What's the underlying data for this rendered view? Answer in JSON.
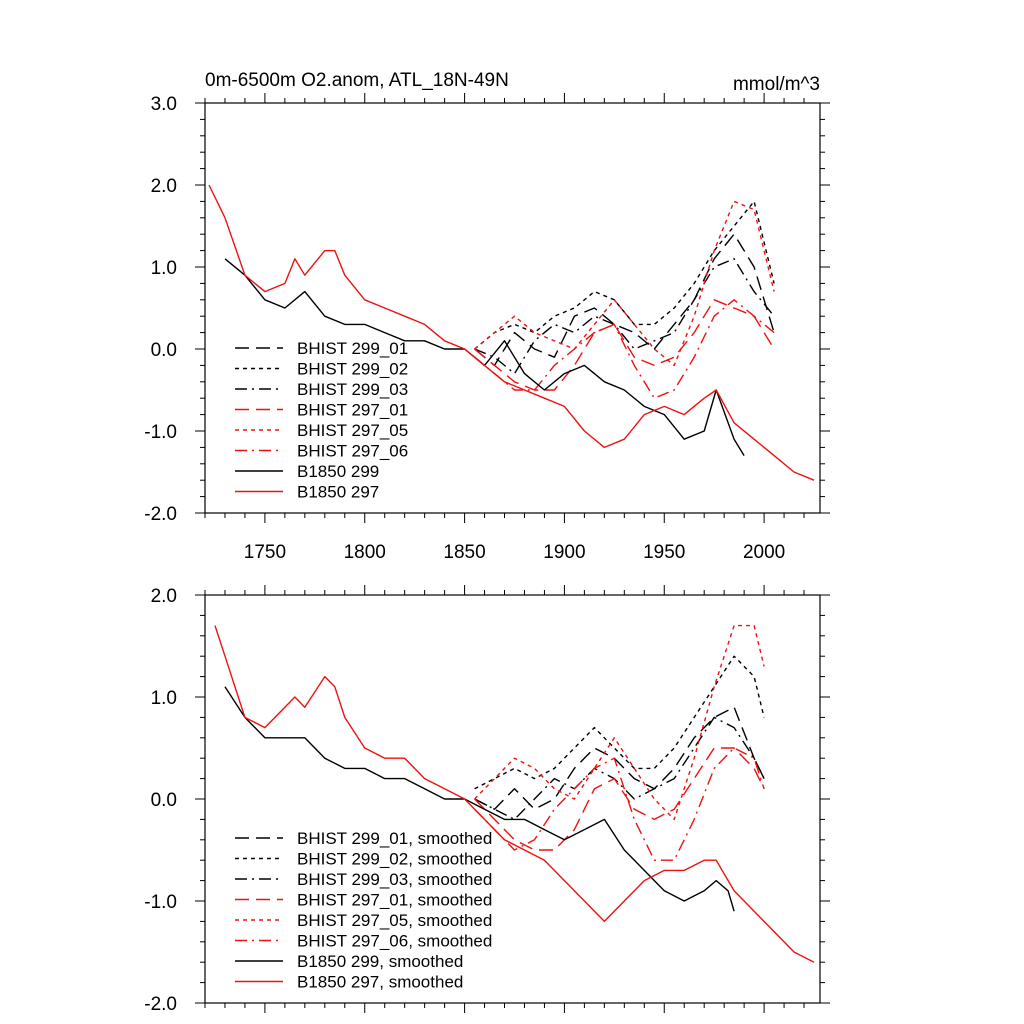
{
  "figure": {
    "title": "0m-6500m O2.anom, ATL_18N-49N",
    "units": "mmol/m^3"
  },
  "chart_data": [
    {
      "type": "line",
      "panel": "top",
      "xlim": [
        1720,
        2028
      ],
      "ylim": [
        -2.0,
        3.0
      ],
      "xticks": [
        1750,
        1800,
        1850,
        1900,
        1950,
        2000
      ],
      "xtick_labels": [
        "1750",
        "1800",
        "1850",
        "1900",
        "1950",
        "2000"
      ],
      "yticks": [
        -2,
        -1,
        0,
        1,
        2,
        3
      ],
      "ytick_labels": [
        "-2.0",
        "-1.0",
        "0.0",
        "1.0",
        "2.0",
        "3.0"
      ],
      "legend_position": "lower-left",
      "series": [
        {
          "name": "BHIST 299_01",
          "color": "#000000",
          "dash": "dash",
          "x": [
            1855,
            1865,
            1875,
            1885,
            1895,
            1905,
            1915,
            1925,
            1935,
            1945,
            1955,
            1965,
            1975,
            1985,
            1995,
            2005
          ],
          "y": [
            0.0,
            -0.2,
            0.2,
            0.0,
            -0.1,
            0.4,
            0.5,
            0.3,
            0.2,
            0.0,
            0.3,
            0.6,
            1.1,
            1.4,
            1.0,
            0.2
          ]
        },
        {
          "name": "BHIST 299_02",
          "color": "#000000",
          "dash": "dot",
          "x": [
            1855,
            1865,
            1875,
            1885,
            1895,
            1905,
            1915,
            1925,
            1935,
            1945,
            1955,
            1965,
            1975,
            1985,
            1995,
            2005
          ],
          "y": [
            0.0,
            0.2,
            0.3,
            0.2,
            0.4,
            0.5,
            0.7,
            0.6,
            0.3,
            0.3,
            0.5,
            0.8,
            1.2,
            1.5,
            1.8,
            0.8
          ]
        },
        {
          "name": "BHIST 299_03",
          "color": "#000000",
          "dash": "dashdot",
          "x": [
            1855,
            1865,
            1875,
            1885,
            1895,
            1905,
            1915,
            1925,
            1935,
            1945,
            1955,
            1965,
            1975,
            1985,
            1995,
            2005
          ],
          "y": [
            0.0,
            -0.1,
            -0.3,
            0.1,
            0.3,
            0.2,
            0.4,
            0.3,
            0.0,
            0.1,
            0.2,
            0.6,
            1.0,
            1.1,
            0.7,
            0.4
          ]
        },
        {
          "name": "BHIST 297_01",
          "color": "#ee1111",
          "dash": "dash",
          "x": [
            1855,
            1865,
            1875,
            1885,
            1895,
            1905,
            1915,
            1925,
            1935,
            1945,
            1955,
            1965,
            1975,
            1985,
            1995,
            2005
          ],
          "y": [
            0.0,
            -0.2,
            -0.4,
            -0.5,
            -0.5,
            -0.2,
            0.2,
            0.3,
            -0.1,
            -0.2,
            -0.1,
            0.2,
            0.6,
            0.5,
            0.4,
            0.0
          ]
        },
        {
          "name": "BHIST 297_05",
          "color": "#ee1111",
          "dash": "dot",
          "x": [
            1855,
            1865,
            1875,
            1885,
            1895,
            1905,
            1915,
            1925,
            1935,
            1945,
            1955,
            1965,
            1975,
            1985,
            1995,
            2005
          ],
          "y": [
            0.0,
            0.2,
            0.4,
            0.2,
            0.1,
            0.0,
            0.3,
            0.6,
            0.3,
            0.0,
            -0.2,
            0.4,
            1.2,
            1.8,
            1.7,
            0.7
          ]
        },
        {
          "name": "BHIST 297_06",
          "color": "#ee1111",
          "dash": "dashdot",
          "x": [
            1855,
            1865,
            1875,
            1885,
            1895,
            1905,
            1915,
            1925,
            1935,
            1945,
            1955,
            1965,
            1975,
            1985,
            1995,
            2005
          ],
          "y": [
            -0.1,
            -0.3,
            -0.5,
            -0.5,
            -0.2,
            0.0,
            0.2,
            0.3,
            -0.2,
            -0.6,
            -0.5,
            -0.1,
            0.4,
            0.6,
            0.4,
            0.2
          ]
        },
        {
          "name": "B1850 299",
          "color": "#000000",
          "dash": "solid",
          "x": [
            1730,
            1740,
            1750,
            1760,
            1770,
            1780,
            1790,
            1800,
            1810,
            1820,
            1830,
            1840,
            1850,
            1860,
            1870,
            1880,
            1890,
            1900,
            1910,
            1920,
            1930,
            1940,
            1950,
            1960,
            1970,
            1976,
            1985,
            1990
          ],
          "y": [
            1.1,
            0.9,
            0.6,
            0.5,
            0.7,
            0.4,
            0.3,
            0.3,
            0.2,
            0.1,
            0.1,
            0.0,
            0.0,
            -0.2,
            0.1,
            -0.3,
            -0.5,
            -0.3,
            -0.2,
            -0.4,
            -0.5,
            -0.7,
            -0.8,
            -1.1,
            -1.0,
            -0.5,
            -1.1,
            -1.3
          ]
        },
        {
          "name": "B1850 297",
          "color": "#ee1111",
          "dash": "solid",
          "x": [
            1722,
            1730,
            1740,
            1750,
            1760,
            1765,
            1770,
            1780,
            1785,
            1790,
            1800,
            1810,
            1820,
            1830,
            1840,
            1850,
            1860,
            1870,
            1880,
            1890,
            1900,
            1910,
            1920,
            1930,
            1940,
            1950,
            1960,
            1970,
            1976,
            1985,
            1995,
            2005,
            2015,
            2025
          ],
          "y": [
            2.0,
            1.6,
            0.9,
            0.7,
            0.8,
            1.1,
            0.9,
            1.2,
            1.2,
            0.9,
            0.6,
            0.5,
            0.4,
            0.3,
            0.1,
            0.0,
            -0.2,
            -0.4,
            -0.5,
            -0.6,
            -0.7,
            -1.0,
            -1.2,
            -1.1,
            -0.8,
            -0.7,
            -0.8,
            -0.6,
            -0.5,
            -0.9,
            -1.1,
            -1.3,
            -1.5,
            -1.6
          ]
        }
      ]
    },
    {
      "type": "line",
      "panel": "bottom",
      "xlim": [
        1720,
        2028
      ],
      "ylim": [
        -2.0,
        2.0
      ],
      "xticks": [
        1750,
        1800,
        1850,
        1900,
        1950,
        2000
      ],
      "yticks": [
        -2,
        -1,
        0,
        1,
        2
      ],
      "ytick_labels": [
        "-2.0",
        "-1.0",
        "0.0",
        "1.0",
        "2.0"
      ],
      "legend_position": "lower-left",
      "series": [
        {
          "name": "BHIST 299_01, smoothed",
          "color": "#000000",
          "dash": "dash",
          "x": [
            1855,
            1865,
            1875,
            1885,
            1895,
            1905,
            1915,
            1925,
            1935,
            1945,
            1955,
            1965,
            1975,
            1985,
            1995,
            2000
          ],
          "y": [
            0.0,
            -0.1,
            0.1,
            -0.1,
            0.0,
            0.3,
            0.5,
            0.4,
            0.2,
            0.1,
            0.3,
            0.6,
            0.8,
            0.9,
            0.4,
            0.2
          ]
        },
        {
          "name": "BHIST 299_02, smoothed",
          "color": "#000000",
          "dash": "dot",
          "x": [
            1855,
            1865,
            1875,
            1885,
            1895,
            1905,
            1915,
            1925,
            1935,
            1945,
            1955,
            1965,
            1975,
            1985,
            1995,
            2000
          ],
          "y": [
            0.1,
            0.2,
            0.3,
            0.2,
            0.3,
            0.5,
            0.7,
            0.5,
            0.3,
            0.3,
            0.5,
            0.8,
            1.1,
            1.4,
            1.2,
            0.8
          ]
        },
        {
          "name": "BHIST 299_03, smoothed",
          "color": "#000000",
          "dash": "dashdot",
          "x": [
            1855,
            1865,
            1875,
            1885,
            1895,
            1905,
            1915,
            1925,
            1935,
            1945,
            1955,
            1965,
            1975,
            1985,
            1995,
            2000
          ],
          "y": [
            0.0,
            -0.1,
            -0.2,
            0.0,
            0.2,
            0.1,
            0.3,
            0.2,
            0.0,
            0.1,
            0.2,
            0.5,
            0.8,
            0.7,
            0.4,
            0.2
          ]
        },
        {
          "name": "BHIST 297_01, smoothed",
          "color": "#ee1111",
          "dash": "dash",
          "x": [
            1855,
            1865,
            1875,
            1885,
            1895,
            1905,
            1915,
            1925,
            1935,
            1945,
            1955,
            1965,
            1975,
            1985,
            1995,
            2000
          ],
          "y": [
            0.0,
            -0.2,
            -0.4,
            -0.5,
            -0.5,
            -0.3,
            0.1,
            0.2,
            -0.1,
            -0.2,
            -0.1,
            0.2,
            0.5,
            0.5,
            0.3,
            0.1
          ]
        },
        {
          "name": "BHIST 297_05, smoothed",
          "color": "#ee1111",
          "dash": "dot",
          "x": [
            1855,
            1865,
            1875,
            1885,
            1895,
            1905,
            1915,
            1925,
            1935,
            1945,
            1955,
            1965,
            1975,
            1985,
            1995,
            2000
          ],
          "y": [
            0.0,
            0.2,
            0.4,
            0.3,
            0.1,
            0.0,
            0.3,
            0.6,
            0.3,
            0.0,
            -0.2,
            0.4,
            1.1,
            1.7,
            1.7,
            1.3
          ]
        },
        {
          "name": "BHIST 297_06, smoothed",
          "color": "#ee1111",
          "dash": "dashdot",
          "x": [
            1855,
            1865,
            1875,
            1885,
            1895,
            1905,
            1915,
            1925,
            1935,
            1945,
            1955,
            1965,
            1975,
            1985,
            1995,
            2000
          ],
          "y": [
            -0.1,
            -0.3,
            -0.5,
            -0.4,
            -0.1,
            0.1,
            0.3,
            0.4,
            -0.2,
            -0.6,
            -0.6,
            -0.2,
            0.3,
            0.5,
            0.4,
            0.1
          ]
        },
        {
          "name": "B1850 299, smoothed",
          "color": "#000000",
          "dash": "solid",
          "x": [
            1730,
            1740,
            1750,
            1760,
            1770,
            1780,
            1790,
            1800,
            1810,
            1820,
            1830,
            1840,
            1850,
            1860,
            1870,
            1880,
            1890,
            1900,
            1910,
            1920,
            1930,
            1940,
            1950,
            1960,
            1970,
            1976,
            1982,
            1985
          ],
          "y": [
            1.1,
            0.8,
            0.6,
            0.6,
            0.6,
            0.4,
            0.3,
            0.3,
            0.2,
            0.2,
            0.1,
            0.0,
            0.0,
            -0.1,
            -0.2,
            -0.2,
            -0.3,
            -0.4,
            -0.3,
            -0.2,
            -0.5,
            -0.7,
            -0.9,
            -1.0,
            -0.9,
            -0.8,
            -0.9,
            -1.1
          ]
        },
        {
          "name": "B1850 297, smoothed",
          "color": "#ee1111",
          "dash": "solid",
          "x": [
            1725,
            1730,
            1740,
            1750,
            1760,
            1765,
            1770,
            1780,
            1785,
            1790,
            1800,
            1810,
            1820,
            1830,
            1840,
            1850,
            1860,
            1870,
            1880,
            1890,
            1900,
            1910,
            1920,
            1930,
            1940,
            1950,
            1960,
            1970,
            1976,
            1985,
            1995,
            2005,
            2015,
            2025
          ],
          "y": [
            1.7,
            1.4,
            0.8,
            0.7,
            0.9,
            1.0,
            0.9,
            1.2,
            1.1,
            0.8,
            0.5,
            0.4,
            0.4,
            0.2,
            0.1,
            0.0,
            -0.2,
            -0.4,
            -0.5,
            -0.6,
            -0.8,
            -1.0,
            -1.2,
            -1.0,
            -0.8,
            -0.7,
            -0.7,
            -0.6,
            -0.6,
            -0.9,
            -1.1,
            -1.3,
            -1.5,
            -1.6
          ]
        }
      ]
    }
  ]
}
